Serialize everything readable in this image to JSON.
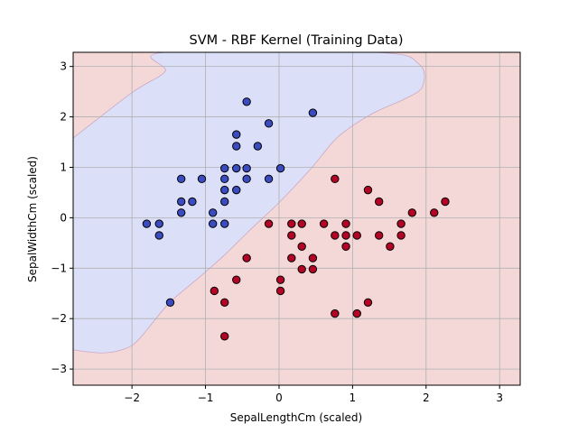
{
  "chart_data": {
    "type": "scatter",
    "title": "SVM - RBF Kernel (Training Data)",
    "xlabel": "SepalLengthCm (scaled)",
    "ylabel": "SepalWidthCm (scaled)",
    "xlim": [
      -2.8,
      3.28
    ],
    "ylim": [
      -3.32,
      3.28
    ],
    "xticks": [
      -2,
      -1,
      0,
      1,
      2,
      3
    ],
    "yticks": [
      -3,
      -2,
      -1,
      0,
      1,
      2,
      3
    ],
    "grid": true,
    "background_regions": [
      {
        "class": "blue",
        "color": "#dcdff8"
      },
      {
        "class": "red",
        "color": "#f4d8d8"
      }
    ],
    "decision_boundary": [
      [
        -2.8,
        1.58
      ],
      [
        -2.0,
        2.48
      ],
      [
        -1.55,
        2.9
      ],
      [
        -1.55,
        3.28
      ],
      [
        1.3,
        3.28
      ],
      [
        1.9,
        3.05
      ],
      [
        1.95,
        2.6
      ],
      [
        1.7,
        2.35
      ],
      [
        1.25,
        2.05
      ],
      [
        0.8,
        1.6
      ],
      [
        0.45,
        1.0
      ],
      [
        0.0,
        0.3
      ],
      [
        -0.4,
        -0.25
      ],
      [
        -0.75,
        -0.75
      ],
      [
        -1.1,
        -1.2
      ],
      [
        -1.5,
        -1.7
      ],
      [
        -1.9,
        -2.4
      ],
      [
        -2.1,
        -2.6
      ],
      [
        -2.4,
        -2.68
      ],
      [
        -2.8,
        -2.62
      ]
    ],
    "series": [
      {
        "color": "#3b4cc0",
        "points": [
          [
            -1.8,
            -0.12
          ],
          [
            -1.63,
            -0.12
          ],
          [
            -1.63,
            -0.35
          ],
          [
            -1.33,
            0.77
          ],
          [
            -1.33,
            0.32
          ],
          [
            -1.33,
            0.1
          ],
          [
            -1.18,
            0.32
          ],
          [
            -1.05,
            0.77
          ],
          [
            -0.9,
            0.1
          ],
          [
            -0.9,
            -0.12
          ],
          [
            -0.74,
            0.98
          ],
          [
            -0.74,
            0.77
          ],
          [
            -0.74,
            0.55
          ],
          [
            -0.74,
            0.32
          ],
          [
            -0.74,
            -0.12
          ],
          [
            -0.58,
            1.65
          ],
          [
            -0.58,
            1.42
          ],
          [
            -0.58,
            0.98
          ],
          [
            -0.58,
            0.55
          ],
          [
            -0.44,
            2.3
          ],
          [
            -0.44,
            0.98
          ],
          [
            -0.44,
            0.77
          ],
          [
            -0.29,
            1.42
          ],
          [
            -0.14,
            1.87
          ],
          [
            -0.14,
            0.77
          ],
          [
            0.02,
            0.98
          ],
          [
            0.46,
            2.08
          ],
          [
            -1.48,
            -1.68
          ]
        ]
      },
      {
        "color": "#b40426",
        "points": [
          [
            -0.14,
            -0.12
          ],
          [
            0.17,
            -0.12
          ],
          [
            0.17,
            -0.35
          ],
          [
            0.17,
            -0.8
          ],
          [
            0.31,
            -0.12
          ],
          [
            0.31,
            -0.57
          ],
          [
            0.31,
            -1.02
          ],
          [
            0.46,
            -0.8
          ],
          [
            0.46,
            -1.02
          ],
          [
            0.61,
            -0.12
          ],
          [
            0.76,
            0.77
          ],
          [
            0.76,
            -0.35
          ],
          [
            0.76,
            -1.9
          ],
          [
            0.91,
            -0.12
          ],
          [
            0.91,
            -0.35
          ],
          [
            0.91,
            -0.57
          ],
          [
            1.06,
            -0.35
          ],
          [
            1.06,
            -1.9
          ],
          [
            1.21,
            0.55
          ],
          [
            1.21,
            -1.68
          ],
          [
            1.36,
            0.32
          ],
          [
            1.36,
            -0.35
          ],
          [
            1.51,
            -0.57
          ],
          [
            1.66,
            -0.12
          ],
          [
            1.66,
            -0.35
          ],
          [
            1.81,
            0.1
          ],
          [
            2.11,
            0.1
          ],
          [
            2.26,
            0.32
          ],
          [
            -0.44,
            -0.8
          ],
          [
            -0.58,
            -1.23
          ],
          [
            -0.88,
            -1.45
          ],
          [
            -0.74,
            -1.68
          ],
          [
            0.02,
            -1.23
          ],
          [
            0.02,
            -1.45
          ],
          [
            -0.74,
            -2.35
          ]
        ]
      }
    ]
  }
}
